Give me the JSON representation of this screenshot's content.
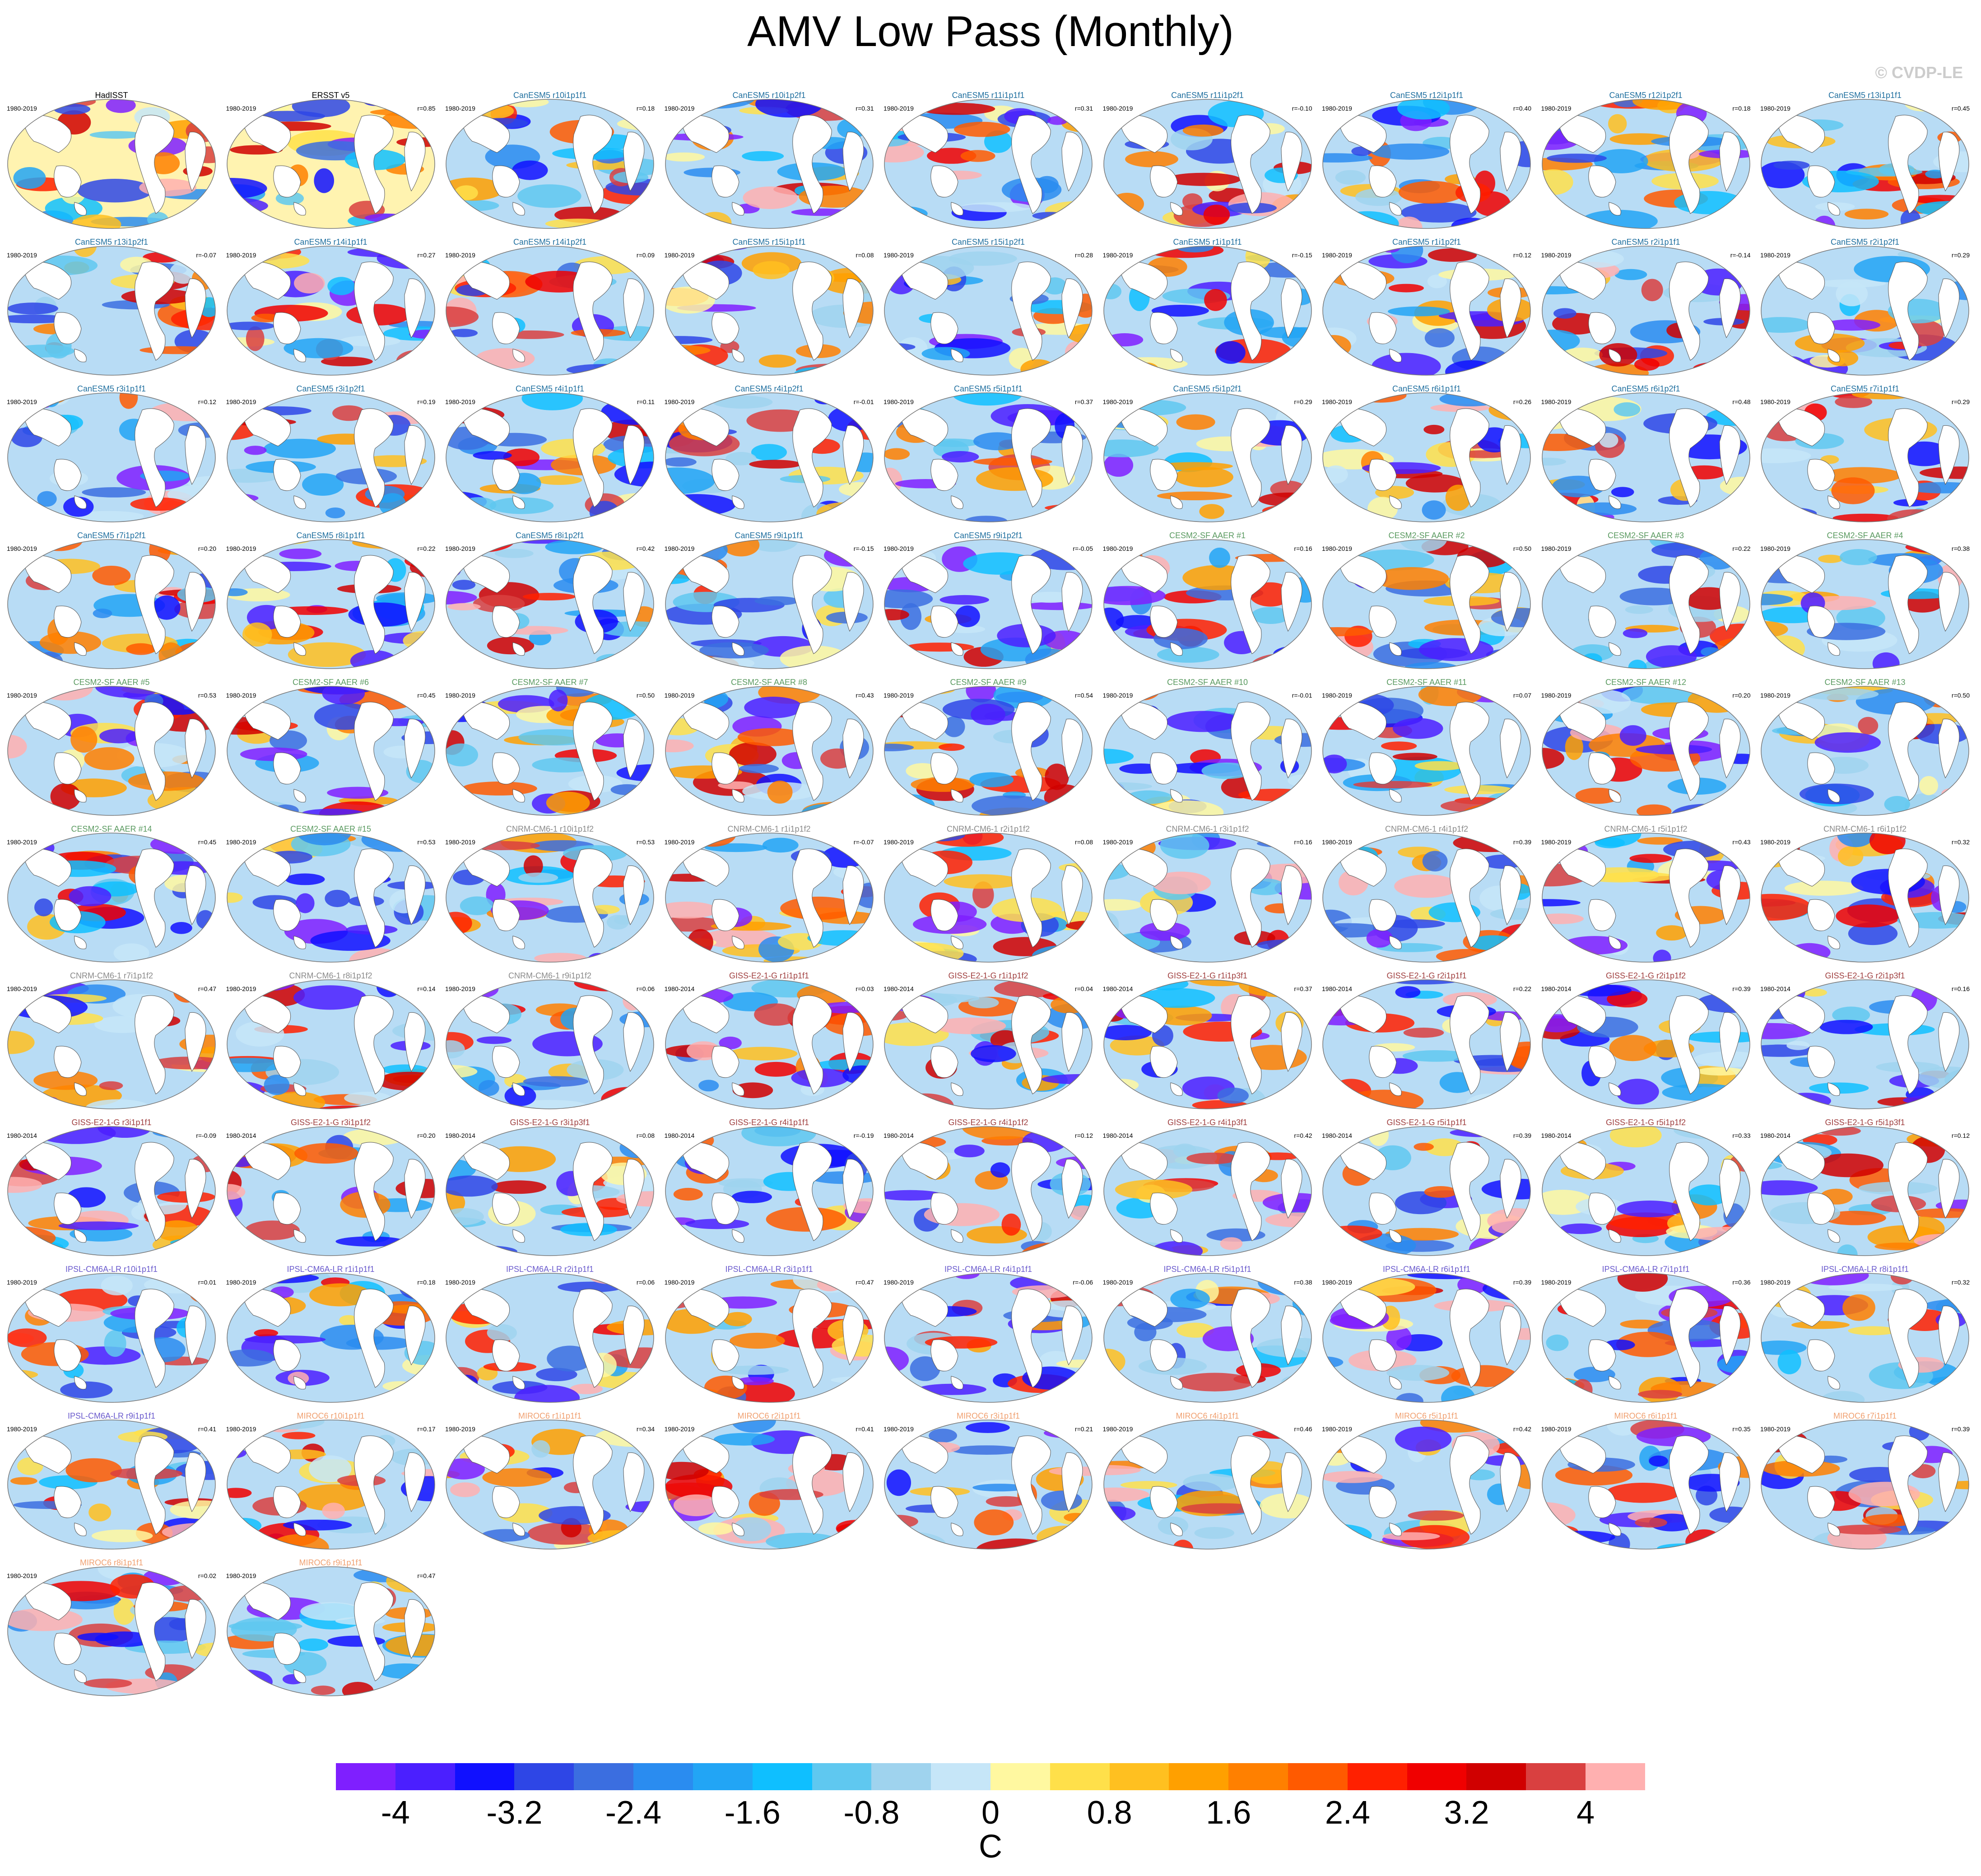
{
  "title": "AMV Low Pass (Monthly)",
  "copyright": "© CVDP-LE",
  "units": "C",
  "colorbar": {
    "ticks": [
      "-4",
      "-3.2",
      "-2.4",
      "-1.6",
      "-0.8",
      "0",
      "0.8",
      "1.6",
      "2.4",
      "3.2",
      "4"
    ],
    "colors": [
      "#7f1fff",
      "#4b1fff",
      "#1010ff",
      "#2e46e6",
      "#3b6ee0",
      "#2a8cf0",
      "#22a5f5",
      "#0fbfff",
      "#5fc8f0",
      "#9fd3ee",
      "#c6e6f8",
      "#fff8a0",
      "#ffe04a",
      "#ffc020",
      "#ffa000",
      "#ff8000",
      "#ff5a00",
      "#ff2000",
      "#f00000",
      "#d00000",
      "#d94040",
      "#ffb0b0"
    ]
  },
  "colors": {
    "obs": "#000000",
    "CanESM5": "#1f6f9f",
    "CESM2-SF AAER": "#5a9a60",
    "CNRM-CM6-1": "#8a8a8a",
    "GISS-E2-1-G": "#a04040",
    "IPSL-CM6A-LR": "#6a5acd",
    "MIROC6": "#f0a070"
  },
  "panels": [
    {
      "name": "HadISST",
      "period": "1980-2019",
      "r": "",
      "group": "obs"
    },
    {
      "name": "ERSST v5",
      "period": "1980-2019",
      "r": "r=0.85",
      "group": "obs"
    },
    {
      "name": "CanESM5 r10i1p1f1",
      "period": "1980-2019",
      "r": "r=0.18",
      "group": "CanESM5"
    },
    {
      "name": "CanESM5 r10i1p2f1",
      "period": "1980-2019",
      "r": "r=0.31",
      "group": "CanESM5"
    },
    {
      "name": "CanESM5 r11i1p1f1",
      "period": "1980-2019",
      "r": "r=0.31",
      "group": "CanESM5"
    },
    {
      "name": "CanESM5 r11i1p2f1",
      "period": "1980-2019",
      "r": "r=-0.10",
      "group": "CanESM5"
    },
    {
      "name": "CanESM5 r12i1p1f1",
      "period": "1980-2019",
      "r": "r=0.40",
      "group": "CanESM5"
    },
    {
      "name": "CanESM5 r12i1p2f1",
      "period": "1980-2019",
      "r": "r=0.18",
      "group": "CanESM5"
    },
    {
      "name": "CanESM5 r13i1p1f1",
      "period": "1980-2019",
      "r": "r=0.45",
      "group": "CanESM5"
    },
    {
      "name": "CanESM5 r13i1p2f1",
      "period": "1980-2019",
      "r": "r=-0.07",
      "group": "CanESM5"
    },
    {
      "name": "CanESM5 r14i1p1f1",
      "period": "1980-2019",
      "r": "r=0.27",
      "group": "CanESM5"
    },
    {
      "name": "CanESM5 r14i1p2f1",
      "period": "1980-2019",
      "r": "r=0.09",
      "group": "CanESM5"
    },
    {
      "name": "CanESM5 r15i1p1f1",
      "period": "1980-2019",
      "r": "r=0.08",
      "group": "CanESM5"
    },
    {
      "name": "CanESM5 r15i1p2f1",
      "period": "1980-2019",
      "r": "r=0.28",
      "group": "CanESM5"
    },
    {
      "name": "CanESM5 r1i1p1f1",
      "period": "1980-2019",
      "r": "r=-0.15",
      "group": "CanESM5"
    },
    {
      "name": "CanESM5 r1i1p2f1",
      "period": "1980-2019",
      "r": "r=0.12",
      "group": "CanESM5"
    },
    {
      "name": "CanESM5 r2i1p1f1",
      "period": "1980-2019",
      "r": "r=-0.14",
      "group": "CanESM5"
    },
    {
      "name": "CanESM5 r2i1p2f1",
      "period": "1980-2019",
      "r": "r=0.29",
      "group": "CanESM5"
    },
    {
      "name": "CanESM5 r3i1p1f1",
      "period": "1980-2019",
      "r": "r=0.12",
      "group": "CanESM5"
    },
    {
      "name": "CanESM5 r3i1p2f1",
      "period": "1980-2019",
      "r": "r=0.19",
      "group": "CanESM5"
    },
    {
      "name": "CanESM5 r4i1p1f1",
      "period": "1980-2019",
      "r": "r=0.11",
      "group": "CanESM5"
    },
    {
      "name": "CanESM5 r4i1p2f1",
      "period": "1980-2019",
      "r": "r=-0.01",
      "group": "CanESM5"
    },
    {
      "name": "CanESM5 r5i1p1f1",
      "period": "1980-2019",
      "r": "r=0.37",
      "group": "CanESM5"
    },
    {
      "name": "CanESM5 r5i1p2f1",
      "period": "1980-2019",
      "r": "r=0.29",
      "group": "CanESM5"
    },
    {
      "name": "CanESM5 r6i1p1f1",
      "period": "1980-2019",
      "r": "r=0.26",
      "group": "CanESM5"
    },
    {
      "name": "CanESM5 r6i1p2f1",
      "period": "1980-2019",
      "r": "r=0.48",
      "group": "CanESM5"
    },
    {
      "name": "CanESM5 r7i1p1f1",
      "period": "1980-2019",
      "r": "r=0.29",
      "group": "CanESM5"
    },
    {
      "name": "CanESM5 r7i1p2f1",
      "period": "1980-2019",
      "r": "r=0.20",
      "group": "CanESM5"
    },
    {
      "name": "CanESM5 r8i1p1f1",
      "period": "1980-2019",
      "r": "r=0.22",
      "group": "CanESM5"
    },
    {
      "name": "CanESM5 r8i1p2f1",
      "period": "1980-2019",
      "r": "r=0.42",
      "group": "CanESM5"
    },
    {
      "name": "CanESM5 r9i1p1f1",
      "period": "1980-2019",
      "r": "r=-0.15",
      "group": "CanESM5"
    },
    {
      "name": "CanESM5 r9i1p2f1",
      "period": "1980-2019",
      "r": "r=-0.05",
      "group": "CanESM5"
    },
    {
      "name": "CESM2-SF AAER #1",
      "period": "1980-2019",
      "r": "r=0.16",
      "group": "CESM2-SF AAER"
    },
    {
      "name": "CESM2-SF AAER #2",
      "period": "1980-2019",
      "r": "r=0.50",
      "group": "CESM2-SF AAER"
    },
    {
      "name": "CESM2-SF AAER #3",
      "period": "1980-2019",
      "r": "r=0.22",
      "group": "CESM2-SF AAER"
    },
    {
      "name": "CESM2-SF AAER #4",
      "period": "1980-2019",
      "r": "r=0.38",
      "group": "CESM2-SF AAER"
    },
    {
      "name": "CESM2-SF AAER #5",
      "period": "1980-2019",
      "r": "r=0.53",
      "group": "CESM2-SF AAER"
    },
    {
      "name": "CESM2-SF AAER #6",
      "period": "1980-2019",
      "r": "r=0.45",
      "group": "CESM2-SF AAER"
    },
    {
      "name": "CESM2-SF AAER #7",
      "period": "1980-2019",
      "r": "r=0.50",
      "group": "CESM2-SF AAER"
    },
    {
      "name": "CESM2-SF AAER #8",
      "period": "1980-2019",
      "r": "r=0.43",
      "group": "CESM2-SF AAER"
    },
    {
      "name": "CESM2-SF AAER #9",
      "period": "1980-2019",
      "r": "r=0.54",
      "group": "CESM2-SF AAER"
    },
    {
      "name": "CESM2-SF AAER #10",
      "period": "1980-2019",
      "r": "r=-0.01",
      "group": "CESM2-SF AAER"
    },
    {
      "name": "CESM2-SF AAER #11",
      "period": "1980-2019",
      "r": "r=0.07",
      "group": "CESM2-SF AAER"
    },
    {
      "name": "CESM2-SF AAER #12",
      "period": "1980-2019",
      "r": "r=0.20",
      "group": "CESM2-SF AAER"
    },
    {
      "name": "CESM2-SF AAER #13",
      "period": "1980-2019",
      "r": "r=0.50",
      "group": "CESM2-SF AAER"
    },
    {
      "name": "CESM2-SF AAER #14",
      "period": "1980-2019",
      "r": "r=0.45",
      "group": "CESM2-SF AAER"
    },
    {
      "name": "CESM2-SF AAER #15",
      "period": "1980-2019",
      "r": "r=0.53",
      "group": "CESM2-SF AAER"
    },
    {
      "name": "CNRM-CM6-1 r10i1p1f2",
      "period": "1980-2019",
      "r": "r=0.53",
      "group": "CNRM-CM6-1"
    },
    {
      "name": "CNRM-CM6-1 r1i1p1f2",
      "period": "1980-2019",
      "r": "r=-0.07",
      "group": "CNRM-CM6-1"
    },
    {
      "name": "CNRM-CM6-1 r2i1p1f2",
      "period": "1980-2019",
      "r": "r=0.08",
      "group": "CNRM-CM6-1"
    },
    {
      "name": "CNRM-CM6-1 r3i1p1f2",
      "period": "1980-2019",
      "r": "r=0.16",
      "group": "CNRM-CM6-1"
    },
    {
      "name": "CNRM-CM6-1 r4i1p1f2",
      "period": "1980-2019",
      "r": "r=0.39",
      "group": "CNRM-CM6-1"
    },
    {
      "name": "CNRM-CM6-1 r5i1p1f2",
      "period": "1980-2019",
      "r": "r=0.43",
      "group": "CNRM-CM6-1"
    },
    {
      "name": "CNRM-CM6-1 r6i1p1f2",
      "period": "1980-2019",
      "r": "r=0.32",
      "group": "CNRM-CM6-1"
    },
    {
      "name": "CNRM-CM6-1 r7i1p1f2",
      "period": "1980-2019",
      "r": "r=0.47",
      "group": "CNRM-CM6-1"
    },
    {
      "name": "CNRM-CM6-1 r8i1p1f2",
      "period": "1980-2019",
      "r": "r=0.14",
      "group": "CNRM-CM6-1"
    },
    {
      "name": "CNRM-CM6-1 r9i1p1f2",
      "period": "1980-2019",
      "r": "r=0.06",
      "group": "CNRM-CM6-1"
    },
    {
      "name": "GISS-E2-1-G r1i1p1f1",
      "period": "1980-2014",
      "r": "r=0.03",
      "group": "GISS-E2-1-G"
    },
    {
      "name": "GISS-E2-1-G r1i1p1f2",
      "period": "1980-2014",
      "r": "r=0.04",
      "group": "GISS-E2-1-G"
    },
    {
      "name": "GISS-E2-1-G r1i1p3f1",
      "period": "1980-2014",
      "r": "r=0.37",
      "group": "GISS-E2-1-G"
    },
    {
      "name": "GISS-E2-1-G r2i1p1f1",
      "period": "1980-2014",
      "r": "r=0.22",
      "group": "GISS-E2-1-G"
    },
    {
      "name": "GISS-E2-1-G r2i1p1f2",
      "period": "1980-2014",
      "r": "r=0.39",
      "group": "GISS-E2-1-G"
    },
    {
      "name": "GISS-E2-1-G r2i1p3f1",
      "period": "1980-2014",
      "r": "r=0.16",
      "group": "GISS-E2-1-G"
    },
    {
      "name": "GISS-E2-1-G r3i1p1f1",
      "period": "1980-2014",
      "r": "r=-0.09",
      "group": "GISS-E2-1-G"
    },
    {
      "name": "GISS-E2-1-G r3i1p1f2",
      "period": "1980-2014",
      "r": "r=0.20",
      "group": "GISS-E2-1-G"
    },
    {
      "name": "GISS-E2-1-G r3i1p3f1",
      "period": "1980-2014",
      "r": "r=0.08",
      "group": "GISS-E2-1-G"
    },
    {
      "name": "GISS-E2-1-G r4i1p1f1",
      "period": "1980-2014",
      "r": "r=-0.19",
      "group": "GISS-E2-1-G"
    },
    {
      "name": "GISS-E2-1-G r4i1p1f2",
      "period": "1980-2014",
      "r": "r=0.12",
      "group": "GISS-E2-1-G"
    },
    {
      "name": "GISS-E2-1-G r4i1p3f1",
      "period": "1980-2014",
      "r": "r=0.42",
      "group": "GISS-E2-1-G"
    },
    {
      "name": "GISS-E2-1-G r5i1p1f1",
      "period": "1980-2014",
      "r": "r=0.39",
      "group": "GISS-E2-1-G"
    },
    {
      "name": "GISS-E2-1-G r5i1p1f2",
      "period": "1980-2014",
      "r": "r=0.33",
      "group": "GISS-E2-1-G"
    },
    {
      "name": "GISS-E2-1-G r5i1p3f1",
      "period": "1980-2014",
      "r": "r=0.12",
      "group": "GISS-E2-1-G"
    },
    {
      "name": "IPSL-CM6A-LR r10i1p1f1",
      "period": "1980-2019",
      "r": "r=0.01",
      "group": "IPSL-CM6A-LR"
    },
    {
      "name": "IPSL-CM6A-LR r1i1p1f1",
      "period": "1980-2019",
      "r": "r=0.18",
      "group": "IPSL-CM6A-LR"
    },
    {
      "name": "IPSL-CM6A-LR r2i1p1f1",
      "period": "1980-2019",
      "r": "r=0.06",
      "group": "IPSL-CM6A-LR"
    },
    {
      "name": "IPSL-CM6A-LR r3i1p1f1",
      "period": "1980-2019",
      "r": "r=0.47",
      "group": "IPSL-CM6A-LR"
    },
    {
      "name": "IPSL-CM6A-LR r4i1p1f1",
      "period": "1980-2019",
      "r": "r=-0.06",
      "group": "IPSL-CM6A-LR"
    },
    {
      "name": "IPSL-CM6A-LR r5i1p1f1",
      "period": "1980-2019",
      "r": "r=0.38",
      "group": "IPSL-CM6A-LR"
    },
    {
      "name": "IPSL-CM6A-LR r6i1p1f1",
      "period": "1980-2019",
      "r": "r=0.39",
      "group": "IPSL-CM6A-LR"
    },
    {
      "name": "IPSL-CM6A-LR r7i1p1f1",
      "period": "1980-2019",
      "r": "r=0.36",
      "group": "IPSL-CM6A-LR"
    },
    {
      "name": "IPSL-CM6A-LR r8i1p1f1",
      "period": "1980-2019",
      "r": "r=0.32",
      "group": "IPSL-CM6A-LR"
    },
    {
      "name": "IPSL-CM6A-LR r9i1p1f1",
      "period": "1980-2019",
      "r": "r=0.41",
      "group": "IPSL-CM6A-LR"
    },
    {
      "name": "MIROC6 r10i1p1f1",
      "period": "1980-2019",
      "r": "r=0.17",
      "group": "MIROC6"
    },
    {
      "name": "MIROC6 r1i1p1f1",
      "period": "1980-2019",
      "r": "r=0.34",
      "group": "MIROC6"
    },
    {
      "name": "MIROC6 r2i1p1f1",
      "period": "1980-2019",
      "r": "r=0.41",
      "group": "MIROC6"
    },
    {
      "name": "MIROC6 r3i1p1f1",
      "period": "1980-2019",
      "r": "r=0.21",
      "group": "MIROC6"
    },
    {
      "name": "MIROC6 r4i1p1f1",
      "period": "1980-2019",
      "r": "r=0.46",
      "group": "MIROC6"
    },
    {
      "name": "MIROC6 r5i1p1f1",
      "period": "1980-2019",
      "r": "r=0.42",
      "group": "MIROC6"
    },
    {
      "name": "MIROC6 r6i1p1f1",
      "period": "1980-2019",
      "r": "r=0.35",
      "group": "MIROC6"
    },
    {
      "name": "MIROC6 r7i1p1f1",
      "period": "1980-2019",
      "r": "r=0.39",
      "group": "MIROC6"
    },
    {
      "name": "MIROC6 r8i1p1f1",
      "period": "1980-2019",
      "r": "r=0.02",
      "group": "MIROC6"
    },
    {
      "name": "MIROC6 r9i1p1f1",
      "period": "1980-2019",
      "r": "r=0.47",
      "group": "MIROC6"
    }
  ]
}
